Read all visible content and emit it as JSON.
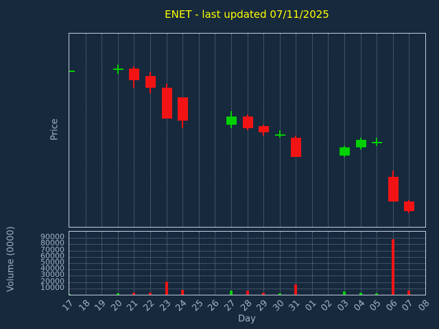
{
  "title": "ENET - last updated 07/11/2025",
  "axes": {
    "price_label": "Price",
    "volume_label": "Volume (0000)",
    "x_label": "Day"
  },
  "colors": {
    "background": "#17293d",
    "title_text": "#ffff00",
    "axis_text": "#9db4c6",
    "panel_border": "#c3cedb",
    "grid": "#9fb0c0",
    "up": "#00d000",
    "down": "#f21414"
  },
  "chart_data": [
    {
      "type": "candlestick",
      "title": "ENET - last updated 07/11/2025",
      "xlabel": "Day",
      "ylabel": "Price",
      "x_categories": [
        "17",
        "18",
        "19",
        "20",
        "21",
        "22",
        "23",
        "24",
        "25",
        "26",
        "27",
        "28",
        "29",
        "30",
        "31",
        "01",
        "02",
        "03",
        "04",
        "05",
        "06",
        "07",
        "08"
      ],
      "grid": "vertical-dotted",
      "legend": "none",
      "price_axis_tick_labels_visible": false,
      "note": "price axis has no numeric tick labels; values estimated on relative 0-100 scale",
      "ylim": [
        0,
        100
      ],
      "candles": [
        {
          "x": "17",
          "i": 0,
          "open": 81,
          "high": 81,
          "low": 81,
          "close": 81
        },
        {
          "x": "20",
          "i": 3,
          "open": 82,
          "high": 84,
          "low": 79,
          "close": 82
        },
        {
          "x": "21",
          "i": 4,
          "open": 82,
          "high": 83,
          "low": 72,
          "close": 76
        },
        {
          "x": "22",
          "i": 5,
          "open": 78,
          "high": 80,
          "low": 69,
          "close": 72
        },
        {
          "x": "23",
          "i": 6,
          "open": 72,
          "high": 74,
          "low": 56,
          "close": 56
        },
        {
          "x": "24",
          "i": 7,
          "open": 67,
          "high": 67,
          "low": 51,
          "close": 55
        },
        {
          "x": "27",
          "i": 10,
          "open": 53,
          "high": 60,
          "low": 51,
          "close": 57
        },
        {
          "x": "28",
          "i": 11,
          "open": 57,
          "high": 58,
          "low": 50,
          "close": 51
        },
        {
          "x": "29",
          "i": 12,
          "open": 52,
          "high": 53,
          "low": 47,
          "close": 49
        },
        {
          "x": "30",
          "i": 13,
          "open": 48,
          "high": 50,
          "low": 46,
          "close": 48
        },
        {
          "x": "31",
          "i": 14,
          "open": 46,
          "high": 47,
          "low": 36,
          "close": 36
        },
        {
          "x": "03",
          "i": 17,
          "open": 37,
          "high": 42,
          "low": 36,
          "close": 41
        },
        {
          "x": "04",
          "i": 18,
          "open": 41,
          "high": 46,
          "low": 40,
          "close": 45
        },
        {
          "x": "05",
          "i": 19,
          "open": 44,
          "high": 46,
          "low": 42,
          "close": 44
        },
        {
          "x": "06",
          "i": 20,
          "open": 26,
          "high": 29,
          "low": 13,
          "close": 13
        },
        {
          "x": "07",
          "i": 21,
          "open": 13,
          "high": 14,
          "low": 7,
          "close": 8
        }
      ]
    },
    {
      "type": "bar",
      "ylabel": "Volume (0000)",
      "ylim": [
        0,
        100000
      ],
      "yticks": [
        90000,
        80000,
        70000,
        60000,
        50000,
        40000,
        30000,
        20000,
        10000
      ],
      "grid": "both-dotted",
      "bars": [
        {
          "x": "17",
          "i": 0,
          "value": 1500,
          "dir": "up"
        },
        {
          "x": "20",
          "i": 3,
          "value": 2500,
          "dir": "up"
        },
        {
          "x": "21",
          "i": 4,
          "value": 3000,
          "dir": "down"
        },
        {
          "x": "22",
          "i": 5,
          "value": 3500,
          "dir": "down"
        },
        {
          "x": "23",
          "i": 6,
          "value": 21000,
          "dir": "down"
        },
        {
          "x": "24",
          "i": 7,
          "value": 8000,
          "dir": "down"
        },
        {
          "x": "27",
          "i": 10,
          "value": 7000,
          "dir": "up"
        },
        {
          "x": "28",
          "i": 11,
          "value": 6000,
          "dir": "down"
        },
        {
          "x": "29",
          "i": 12,
          "value": 3000,
          "dir": "down"
        },
        {
          "x": "30",
          "i": 13,
          "value": 2000,
          "dir": "up"
        },
        {
          "x": "31",
          "i": 14,
          "value": 16000,
          "dir": "down"
        },
        {
          "x": "03",
          "i": 17,
          "value": 5000,
          "dir": "up"
        },
        {
          "x": "04",
          "i": 18,
          "value": 3500,
          "dir": "up"
        },
        {
          "x": "05",
          "i": 19,
          "value": 2000,
          "dir": "up"
        },
        {
          "x": "06",
          "i": 20,
          "value": 88000,
          "dir": "down"
        },
        {
          "x": "07",
          "i": 21,
          "value": 7000,
          "dir": "down"
        }
      ]
    }
  ]
}
